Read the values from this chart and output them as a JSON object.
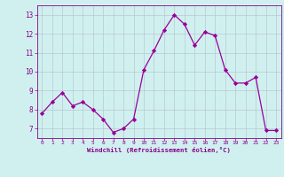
{
  "x": [
    0,
    1,
    2,
    3,
    4,
    5,
    6,
    7,
    8,
    9,
    10,
    11,
    12,
    13,
    14,
    15,
    16,
    17,
    18,
    19,
    20,
    21,
    22,
    23
  ],
  "y": [
    7.8,
    8.4,
    8.9,
    8.2,
    8.4,
    8.0,
    7.5,
    6.8,
    7.0,
    7.5,
    10.1,
    11.1,
    12.2,
    13.0,
    12.5,
    11.4,
    12.1,
    11.9,
    10.1,
    9.4,
    9.4,
    9.7,
    6.9,
    6.9
  ],
  "line_color": "#990099",
  "marker": "D",
  "marker_size": 2.2,
  "bg_color": "#d0f0f0",
  "grid_color": "#b8c8d0",
  "xlabel": "Windchill (Refroidissement éolien,°C)",
  "xlabel_color": "#880088",
  "tick_color": "#880088",
  "ylim": [
    6.5,
    13.5
  ],
  "xlim": [
    -0.5,
    23.5
  ],
  "yticks": [
    7,
    8,
    9,
    10,
    11,
    12,
    13
  ],
  "xticks": [
    0,
    1,
    2,
    3,
    4,
    5,
    6,
    7,
    8,
    9,
    10,
    11,
    12,
    13,
    14,
    15,
    16,
    17,
    18,
    19,
    20,
    21,
    22,
    23
  ],
  "figsize": [
    3.2,
    2.0
  ],
  "dpi": 100
}
